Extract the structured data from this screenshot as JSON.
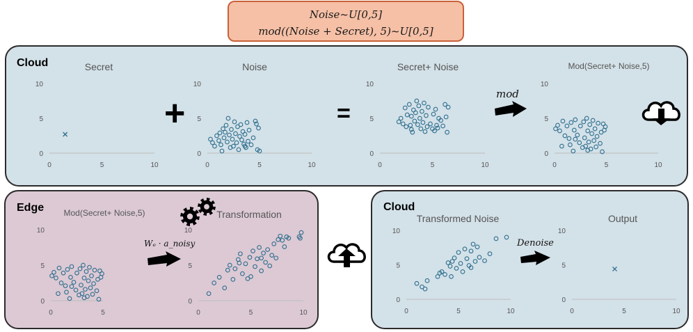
{
  "formula": {
    "line1": "Noise~U[0,5]",
    "line2": "mod((Noise + Secret), 5)~U[0,5]"
  },
  "panels": {
    "cloud_top": {
      "label": "Cloud"
    },
    "edge": {
      "label": "Edge"
    },
    "cloud_bottom": {
      "label": "Cloud"
    }
  },
  "operators": {
    "plus": "+",
    "equals": "="
  },
  "arrows": {
    "mod": "mod",
    "transform": "Wₑ · a_noisy",
    "denoise": "Denoise"
  },
  "icons": [
    "cloud-download-icon",
    "cloud-upload-icon",
    "gears-icon"
  ],
  "colors": {
    "marker": "#2e6e8e",
    "cloud_panel": "#d3e1e8",
    "edge_panel": "#dcc9d4",
    "formula_bg": "#f6c0a6"
  },
  "chart_data": [
    {
      "type": "scatter",
      "title": "Secret",
      "xlim": [
        0,
        10
      ],
      "ylim": [
        0,
        10
      ],
      "xticks": [
        "0",
        "5",
        "10"
      ],
      "yticks": [
        "0",
        "5",
        "10"
      ],
      "marker": "x",
      "points": [
        [
          1.5,
          2.7
        ]
      ]
    },
    {
      "type": "scatter",
      "title": "Noise",
      "xlim": [
        0,
        10
      ],
      "ylim": [
        0,
        10
      ],
      "xticks": [
        "0",
        "5",
        "10"
      ],
      "yticks": [
        "0",
        "5",
        "10"
      ],
      "marker": "o",
      "points": [
        [
          0.3,
          2.0
        ],
        [
          0.5,
          1.5
        ],
        [
          0.7,
          1.0
        ],
        [
          0.9,
          2.5
        ],
        [
          1.1,
          1.8
        ],
        [
          1.2,
          2.9
        ],
        [
          1.3,
          1.2
        ],
        [
          1.4,
          0.3
        ],
        [
          1.5,
          3.5
        ],
        [
          1.6,
          2.2
        ],
        [
          1.7,
          3.0
        ],
        [
          1.8,
          4.0
        ],
        [
          1.9,
          1.6
        ],
        [
          2.0,
          5.0
        ],
        [
          2.1,
          2.6
        ],
        [
          2.2,
          0.8
        ],
        [
          2.3,
          3.4
        ],
        [
          2.4,
          2.0
        ],
        [
          2.5,
          1.0
        ],
        [
          2.6,
          4.5
        ],
        [
          2.7,
          2.8
        ],
        [
          2.8,
          1.5
        ],
        [
          2.9,
          3.8
        ],
        [
          3.0,
          0.5
        ],
        [
          3.1,
          2.4
        ],
        [
          3.2,
          4.1
        ],
        [
          3.3,
          1.9
        ],
        [
          3.4,
          3.1
        ],
        [
          3.5,
          1.3
        ],
        [
          3.6,
          2.7
        ],
        [
          3.7,
          0.8
        ],
        [
          3.8,
          4.4
        ],
        [
          3.9,
          1.7
        ],
        [
          4.0,
          3.3
        ],
        [
          4.2,
          1.2
        ],
        [
          4.4,
          2.2
        ],
        [
          4.6,
          4.6
        ],
        [
          4.8,
          0.5
        ],
        [
          4.9,
          3.6
        ],
        [
          5.0,
          0.3
        ],
        [
          4.7,
          4.2
        ],
        [
          3.6,
          1.0
        ]
      ]
    },
    {
      "type": "scatter",
      "title": "Secret+ Noise",
      "xlim": [
        0,
        10
      ],
      "ylim": [
        0,
        10
      ],
      "xticks": [
        "0",
        "5",
        "10"
      ],
      "yticks": [
        "0",
        "5",
        "10"
      ],
      "marker": "o",
      "points": [
        [
          1.8,
          4.5
        ],
        [
          2.0,
          5.0
        ],
        [
          2.2,
          4.2
        ],
        [
          2.4,
          6.5
        ],
        [
          2.5,
          3.8
        ],
        [
          2.6,
          5.5
        ],
        [
          2.8,
          7.0
        ],
        [
          2.9,
          4.0
        ],
        [
          3.0,
          5.3
        ],
        [
          3.1,
          3.0
        ],
        [
          3.2,
          6.2
        ],
        [
          3.3,
          4.6
        ],
        [
          3.4,
          5.8
        ],
        [
          3.5,
          7.5
        ],
        [
          3.6,
          4.1
        ],
        [
          3.7,
          6.8
        ],
        [
          3.8,
          5.0
        ],
        [
          3.9,
          3.5
        ],
        [
          4.0,
          6.0
        ],
        [
          4.1,
          4.4
        ],
        [
          4.2,
          7.2
        ],
        [
          4.4,
          5.4
        ],
        [
          4.5,
          3.8
        ],
        [
          4.6,
          6.6
        ],
        [
          4.8,
          4.2
        ],
        [
          5.0,
          3.5
        ],
        [
          5.1,
          5.6
        ],
        [
          5.2,
          3.2
        ],
        [
          5.3,
          6.3
        ],
        [
          5.4,
          4.0
        ],
        [
          5.5,
          3.6
        ],
        [
          5.6,
          5.0
        ],
        [
          5.8,
          4.7
        ],
        [
          6.0,
          3.9
        ],
        [
          6.2,
          7.0
        ],
        [
          6.3,
          5.2
        ],
        [
          6.4,
          3.0
        ],
        [
          6.5,
          6.6
        ],
        [
          4.3,
          3.1
        ],
        [
          3.0,
          3.4
        ]
      ]
    },
    {
      "type": "scatter",
      "title": "Mod(Secret+ Noise,5)",
      "xlim": [
        0,
        10
      ],
      "ylim": [
        0,
        10
      ],
      "xticks": [
        "0",
        "5",
        "10"
      ],
      "yticks": [
        "0",
        "5",
        "10"
      ],
      "marker": "o",
      "points": [
        [
          0.1,
          3.5
        ],
        [
          0.3,
          4.0
        ],
        [
          0.5,
          3.2
        ],
        [
          0.7,
          1.0
        ],
        [
          0.8,
          4.6
        ],
        [
          1.0,
          2.5
        ],
        [
          1.2,
          3.9
        ],
        [
          1.4,
          2.1
        ],
        [
          1.5,
          1.2
        ],
        [
          1.6,
          4.4
        ],
        [
          1.8,
          0.3
        ],
        [
          1.9,
          3.3
        ],
        [
          2.0,
          4.8
        ],
        [
          2.2,
          2.6
        ],
        [
          2.4,
          1.5
        ],
        [
          2.5,
          3.9
        ],
        [
          2.7,
          0.8
        ],
        [
          2.8,
          4.5
        ],
        [
          2.9,
          2.2
        ],
        [
          3.0,
          1.0
        ],
        [
          3.1,
          5.0
        ],
        [
          3.2,
          3.2
        ],
        [
          3.3,
          1.6
        ],
        [
          3.4,
          4.1
        ],
        [
          3.5,
          0.6
        ],
        [
          3.6,
          2.8
        ],
        [
          3.7,
          4.7
        ],
        [
          3.8,
          1.8
        ],
        [
          3.9,
          3.5
        ],
        [
          4.0,
          0.9
        ],
        [
          4.1,
          2.4
        ],
        [
          4.2,
          4.3
        ],
        [
          4.4,
          1.4
        ],
        [
          4.5,
          3.0
        ],
        [
          4.6,
          0.2
        ],
        [
          4.7,
          4.2
        ],
        [
          4.8,
          3.3
        ],
        [
          4.9,
          3.8
        ],
        [
          3.2,
          0.4
        ],
        [
          2.0,
          2.0
        ]
      ]
    },
    {
      "type": "scatter",
      "title": "Mod(Secret+ Noise,5)",
      "xlim": [
        0,
        5
      ],
      "ylim": [
        0,
        10
      ],
      "xticks": [
        "0",
        "5"
      ],
      "yticks": [
        "0",
        "5",
        "10"
      ],
      "marker": "o",
      "points": [
        [
          0.1,
          3.5
        ],
        [
          0.3,
          4.0
        ],
        [
          0.5,
          3.2
        ],
        [
          0.7,
          1.0
        ],
        [
          0.8,
          4.6
        ],
        [
          1.0,
          2.5
        ],
        [
          1.2,
          3.9
        ],
        [
          1.4,
          2.1
        ],
        [
          1.5,
          1.2
        ],
        [
          1.6,
          4.4
        ],
        [
          1.8,
          0.3
        ],
        [
          1.9,
          3.3
        ],
        [
          2.0,
          4.8
        ],
        [
          2.2,
          2.6
        ],
        [
          2.4,
          1.5
        ],
        [
          2.5,
          3.9
        ],
        [
          2.7,
          0.8
        ],
        [
          2.8,
          4.5
        ],
        [
          2.9,
          2.2
        ],
        [
          3.0,
          1.0
        ],
        [
          3.1,
          5.0
        ],
        [
          3.2,
          3.2
        ],
        [
          3.3,
          1.6
        ],
        [
          3.4,
          4.1
        ],
        [
          3.5,
          0.6
        ],
        [
          3.6,
          2.8
        ],
        [
          3.7,
          4.7
        ],
        [
          3.8,
          1.8
        ],
        [
          3.9,
          3.5
        ],
        [
          4.0,
          0.9
        ],
        [
          4.1,
          2.4
        ],
        [
          4.2,
          4.3
        ],
        [
          4.4,
          1.4
        ],
        [
          4.5,
          3.0
        ],
        [
          4.6,
          0.2
        ],
        [
          4.7,
          4.2
        ],
        [
          4.8,
          3.3
        ],
        [
          4.9,
          3.8
        ],
        [
          3.2,
          0.4
        ],
        [
          2.0,
          2.0
        ]
      ]
    },
    {
      "type": "scatter",
      "title": "Transformation",
      "xlim": [
        0,
        10
      ],
      "ylim": [
        0,
        10
      ],
      "xticks": [
        "0",
        "5",
        "10"
      ],
      "yticks": [
        "0",
        "5",
        "10"
      ],
      "marker": "o",
      "points": [
        [
          1.0,
          1.0
        ],
        [
          1.5,
          2.5
        ],
        [
          2.0,
          3.3
        ],
        [
          2.5,
          1.8
        ],
        [
          2.8,
          4.3
        ],
        [
          3.0,
          5.0
        ],
        [
          3.3,
          3.0
        ],
        [
          3.5,
          4.5
        ],
        [
          3.8,
          5.8
        ],
        [
          4.0,
          6.6
        ],
        [
          4.2,
          3.8
        ],
        [
          4.5,
          5.2
        ],
        [
          4.7,
          3.1
        ],
        [
          4.9,
          6.1
        ],
        [
          5.0,
          3.4
        ],
        [
          5.2,
          7.0
        ],
        [
          5.4,
          4.8
        ],
        [
          5.6,
          5.9
        ],
        [
          5.8,
          7.5
        ],
        [
          6.0,
          4.2
        ],
        [
          6.2,
          6.7
        ],
        [
          6.4,
          5.4
        ],
        [
          6.6,
          7.2
        ],
        [
          6.8,
          4.9
        ],
        [
          7.0,
          6.4
        ],
        [
          7.2,
          8.0
        ],
        [
          7.4,
          6.0
        ],
        [
          7.6,
          8.6
        ],
        [
          7.8,
          9.1
        ],
        [
          8.0,
          8.5
        ],
        [
          8.2,
          7.6
        ],
        [
          8.4,
          9.0
        ],
        [
          8.6,
          8.8
        ],
        [
          9.6,
          9.0
        ],
        [
          9.8,
          9.6
        ],
        [
          9.7,
          8.8
        ],
        [
          3.9,
          5.3
        ],
        [
          6.0,
          6.0
        ]
      ]
    },
    {
      "type": "scatter",
      "title": "Transformed Noise",
      "xlim": [
        0,
        10
      ],
      "ylim": [
        0,
        10
      ],
      "xticks": [
        "0",
        "5",
        "10"
      ],
      "yticks": [
        "0",
        "5",
        "10"
      ],
      "marker": "o",
      "points": [
        [
          1.0,
          2.3
        ],
        [
          1.5,
          1.8
        ],
        [
          1.8,
          1.5
        ],
        [
          2.0,
          2.7
        ],
        [
          3.0,
          3.3
        ],
        [
          3.4,
          4.0
        ],
        [
          3.7,
          3.6
        ],
        [
          4.0,
          5.3
        ],
        [
          4.2,
          4.8
        ],
        [
          4.4,
          5.5
        ],
        [
          4.6,
          6.0
        ],
        [
          4.8,
          4.5
        ],
        [
          5.0,
          6.8
        ],
        [
          5.2,
          5.2
        ],
        [
          5.4,
          4.0
        ],
        [
          5.6,
          7.3
        ],
        [
          5.8,
          5.9
        ],
        [
          6.0,
          4.9
        ],
        [
          6.2,
          7.0
        ],
        [
          6.4,
          8.0
        ],
        [
          6.6,
          5.5
        ],
        [
          6.8,
          7.6
        ],
        [
          7.0,
          6.1
        ],
        [
          7.5,
          5.6
        ],
        [
          8.0,
          6.6
        ],
        [
          8.6,
          8.8
        ],
        [
          9.6,
          9.0
        ],
        [
          4.3,
          3.3
        ],
        [
          3.2,
          3.8
        ],
        [
          6.2,
          4.6
        ]
      ]
    },
    {
      "type": "scatter",
      "title": "Output",
      "xlim": [
        0,
        10
      ],
      "ylim": [
        0,
        10
      ],
      "xticks": [
        "0",
        "5",
        "10"
      ],
      "yticks": [
        "0",
        "5",
        "10"
      ],
      "marker": "x",
      "points": [
        [
          4.1,
          4.4
        ]
      ]
    }
  ]
}
